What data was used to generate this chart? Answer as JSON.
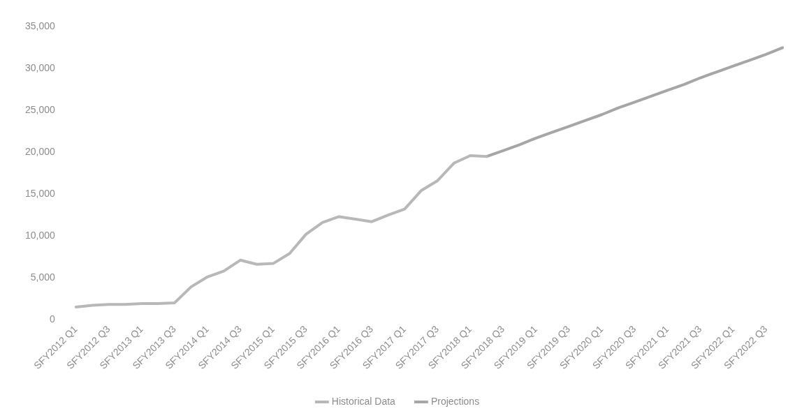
{
  "chart_data": {
    "type": "line",
    "categories": [
      "SFY2012 Q1",
      null,
      "SFY2012 Q3",
      null,
      "SFY2013 Q1",
      null,
      "SFY2013 Q3",
      null,
      "SFY2014 Q1",
      null,
      "SFY2014 Q3",
      null,
      "SFY2015 Q1",
      null,
      "SFY2015 Q3",
      null,
      "SFY2016 Q1",
      null,
      "SFY2016 Q3",
      null,
      "SFY2017 Q1",
      null,
      "SFY2017 Q3",
      null,
      "SFY2018 Q1",
      null,
      "SFY2018 Q3",
      null,
      "SFY2019 Q1",
      null,
      "SFY2019 Q3",
      null,
      "SFY2020 Q1",
      null,
      "SFY2020 Q3",
      null,
      "SFY2021 Q1",
      null,
      "SFY2021 Q3",
      null,
      "SFY2022 Q1",
      null,
      "SFY2022 Q3",
      null
    ],
    "series": [
      {
        "name": "Historical Data",
        "color": "#b8b8b8",
        "values": [
          1500,
          1700,
          1800,
          1800,
          1900,
          1900,
          2000,
          3900,
          5100,
          5800,
          7100,
          6600,
          6700,
          7900,
          10200,
          11600,
          12300,
          12000,
          11700,
          12500,
          13200,
          15400,
          16600,
          18700,
          19600,
          19500,
          null,
          null,
          null,
          null,
          null,
          null,
          null,
          null,
          null,
          null,
          null,
          null,
          null,
          null,
          null,
          null,
          null,
          null
        ]
      },
      {
        "name": "Projections",
        "color": "#a6a6a6",
        "values": [
          null,
          null,
          null,
          null,
          null,
          null,
          null,
          null,
          null,
          null,
          null,
          null,
          null,
          null,
          null,
          null,
          null,
          null,
          null,
          null,
          null,
          null,
          null,
          null,
          null,
          19500,
          20200,
          20900,
          21700,
          22400,
          23100,
          23800,
          24500,
          25300,
          26000,
          26700,
          27400,
          28100,
          28900,
          29600,
          30300,
          31000,
          31700,
          32500
        ]
      }
    ],
    "ylim": [
      0,
      35000
    ],
    "yticks": [
      0,
      {
        "value": 5000,
        "label": "5,000"
      },
      {
        "value": 10000,
        "label": "10,000"
      },
      {
        "value": 15000,
        "label": "15,000"
      },
      {
        "value": 20000,
        "label": "20,000"
      },
      {
        "value": 25000,
        "label": "25,000"
      },
      {
        "value": 30000,
        "label": "30,000"
      },
      {
        "value": 35000,
        "label": "35,000"
      }
    ],
    "legend": "bottom",
    "marker": "none"
  }
}
